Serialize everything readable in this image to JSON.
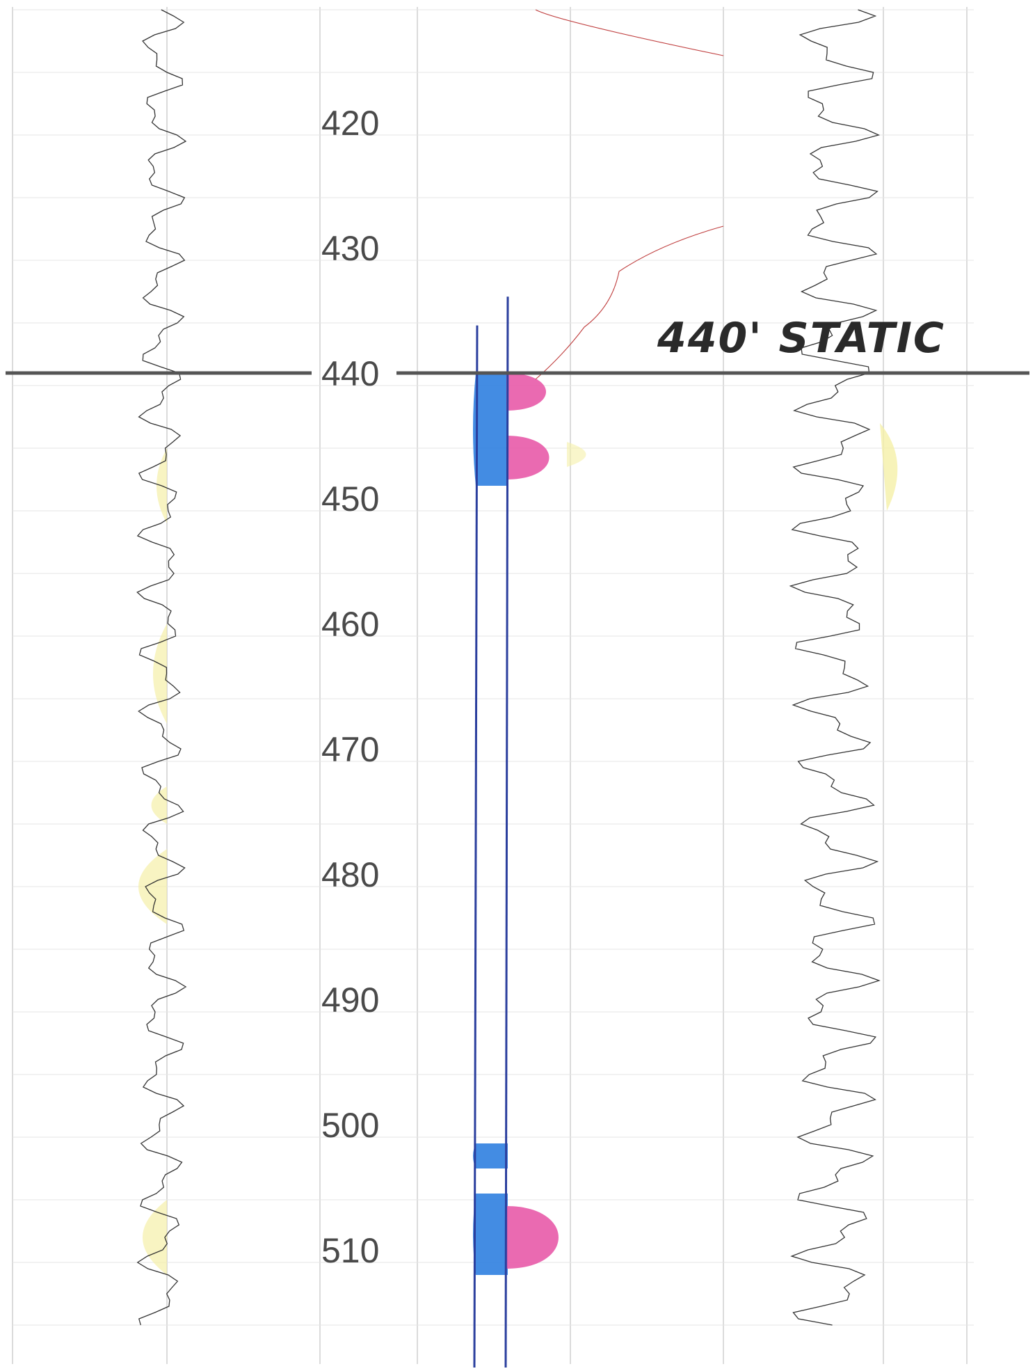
{
  "chart_data": {
    "type": "line",
    "title": "",
    "xlabel": "",
    "ylabel": "",
    "depth_range": [
      410,
      517
    ],
    "depth_ticks": [
      420,
      430,
      440,
      450,
      460,
      470,
      480,
      490,
      500,
      510
    ],
    "depth_labels": [
      "420",
      "430",
      "440",
      "450",
      "460",
      "470",
      "480",
      "490",
      "500",
      "510"
    ],
    "annotation": {
      "text": "440' STATIC",
      "depth": 440
    },
    "shaded_intervals": [
      {
        "track": "center",
        "top": 440,
        "bottom": 449,
        "color": "#2f7fe0"
      },
      {
        "track": "center",
        "top": 505.5,
        "bottom": 512,
        "color": "#2f7fe0"
      },
      {
        "track": "center",
        "top": 501.5,
        "bottom": 503.5,
        "color": "#2f7fe0"
      },
      {
        "track": "center-right",
        "top": 440,
        "bottom": 443,
        "color": "#e85aa8"
      },
      {
        "track": "center-right",
        "top": 445,
        "bottom": 448.5,
        "color": "#e85aa8"
      },
      {
        "track": "center-right",
        "top": 506.5,
        "bottom": 511.5,
        "color": "#e85aa8"
      }
    ],
    "highlight_color": "#f5f0a8",
    "accent_colors": {
      "static_line": "#555555",
      "tracer": "#2b3f9e",
      "magenta": "#e85aa8",
      "blue": "#2f7fe0"
    }
  }
}
